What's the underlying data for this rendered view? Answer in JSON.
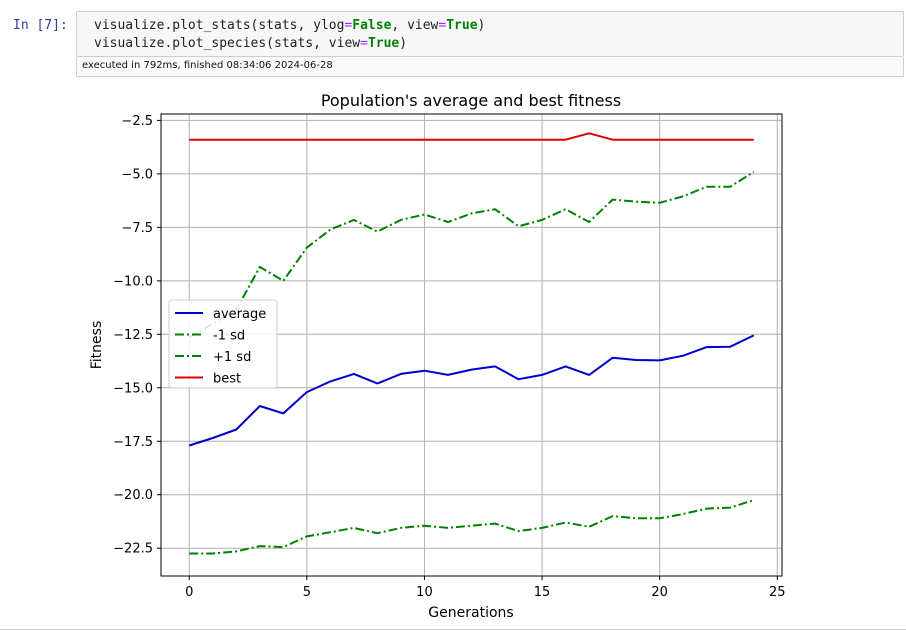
{
  "notebook": {
    "prompt": "In [7]:",
    "code": {
      "line1": {
        "p1": "visualize.plot_stats(stats, ylog",
        "eq1": "=",
        "kw1": "False",
        "p2": ", view",
        "eq2": "=",
        "kw2": "True",
        "p3": ")"
      },
      "line2": {
        "p1": "visualize.plot_species(stats, view",
        "eq1": "=",
        "kw1": "True",
        "p2": ")"
      }
    },
    "execution_status": "executed in 792ms, finished 08:34:06 2024-06-28"
  },
  "chart_data": {
    "type": "line",
    "title": "Population's average and best fitness",
    "xlabel": "Generations",
    "ylabel": "Fitness",
    "xlim": [
      -1.2,
      25.2
    ],
    "ylim": [
      -23.8,
      -2.2
    ],
    "xticks": [
      0,
      5,
      10,
      15,
      20,
      25
    ],
    "yticks": [
      -2.5,
      -5.0,
      -7.5,
      -10.0,
      -12.5,
      -15.0,
      -17.5,
      -20.0,
      -22.5
    ],
    "grid": true,
    "legend_position": "center-left",
    "x": [
      0,
      1,
      2,
      3,
      4,
      5,
      6,
      7,
      8,
      9,
      10,
      11,
      12,
      13,
      14,
      15,
      16,
      17,
      18,
      19,
      20,
      21,
      22,
      23,
      24
    ],
    "series": [
      {
        "name": "average",
        "color": "#0000cc",
        "style": "solid",
        "values": [
          -17.7,
          -17.35,
          -16.95,
          -15.85,
          -16.2,
          -15.2,
          -14.7,
          -14.35,
          -14.8,
          -14.35,
          -14.2,
          -14.4,
          -14.15,
          -14.0,
          -14.6,
          -14.4,
          -14.0,
          -14.4,
          -13.6,
          -13.7,
          -13.72,
          -13.5,
          -13.1,
          -13.08,
          -12.55
        ]
      },
      {
        "name": "-1 sd",
        "color": "#008000",
        "style": "dashdot",
        "values": [
          -22.75,
          -22.75,
          -22.65,
          -22.4,
          -22.45,
          -21.95,
          -21.75,
          -21.55,
          -21.8,
          -21.55,
          -21.45,
          -21.55,
          -21.45,
          -21.35,
          -21.7,
          -21.55,
          -21.3,
          -21.5,
          -21.0,
          -21.1,
          -21.1,
          -20.9,
          -20.65,
          -20.6,
          -20.25
        ]
      },
      {
        "name": "+1 sd",
        "color": "#008000",
        "style": "dashdot",
        "values": [
          -12.65,
          -12.0,
          -11.35,
          -9.35,
          -10.0,
          -8.45,
          -7.6,
          -7.15,
          -7.7,
          -7.15,
          -6.9,
          -7.25,
          -6.85,
          -6.65,
          -7.45,
          -7.15,
          -6.65,
          -7.25,
          -6.2,
          -6.3,
          -6.35,
          -6.05,
          -5.6,
          -5.6,
          -4.9
        ]
      },
      {
        "name": "best",
        "color": "#dd0000",
        "style": "solid",
        "values": [
          -3.4,
          -3.4,
          -3.4,
          -3.4,
          -3.4,
          -3.4,
          -3.4,
          -3.4,
          -3.4,
          -3.4,
          -3.4,
          -3.4,
          -3.4,
          -3.4,
          -3.4,
          -3.4,
          -3.4,
          -3.1,
          -3.4,
          -3.4,
          -3.4,
          -3.4,
          -3.4,
          -3.4,
          -3.4
        ]
      }
    ]
  }
}
